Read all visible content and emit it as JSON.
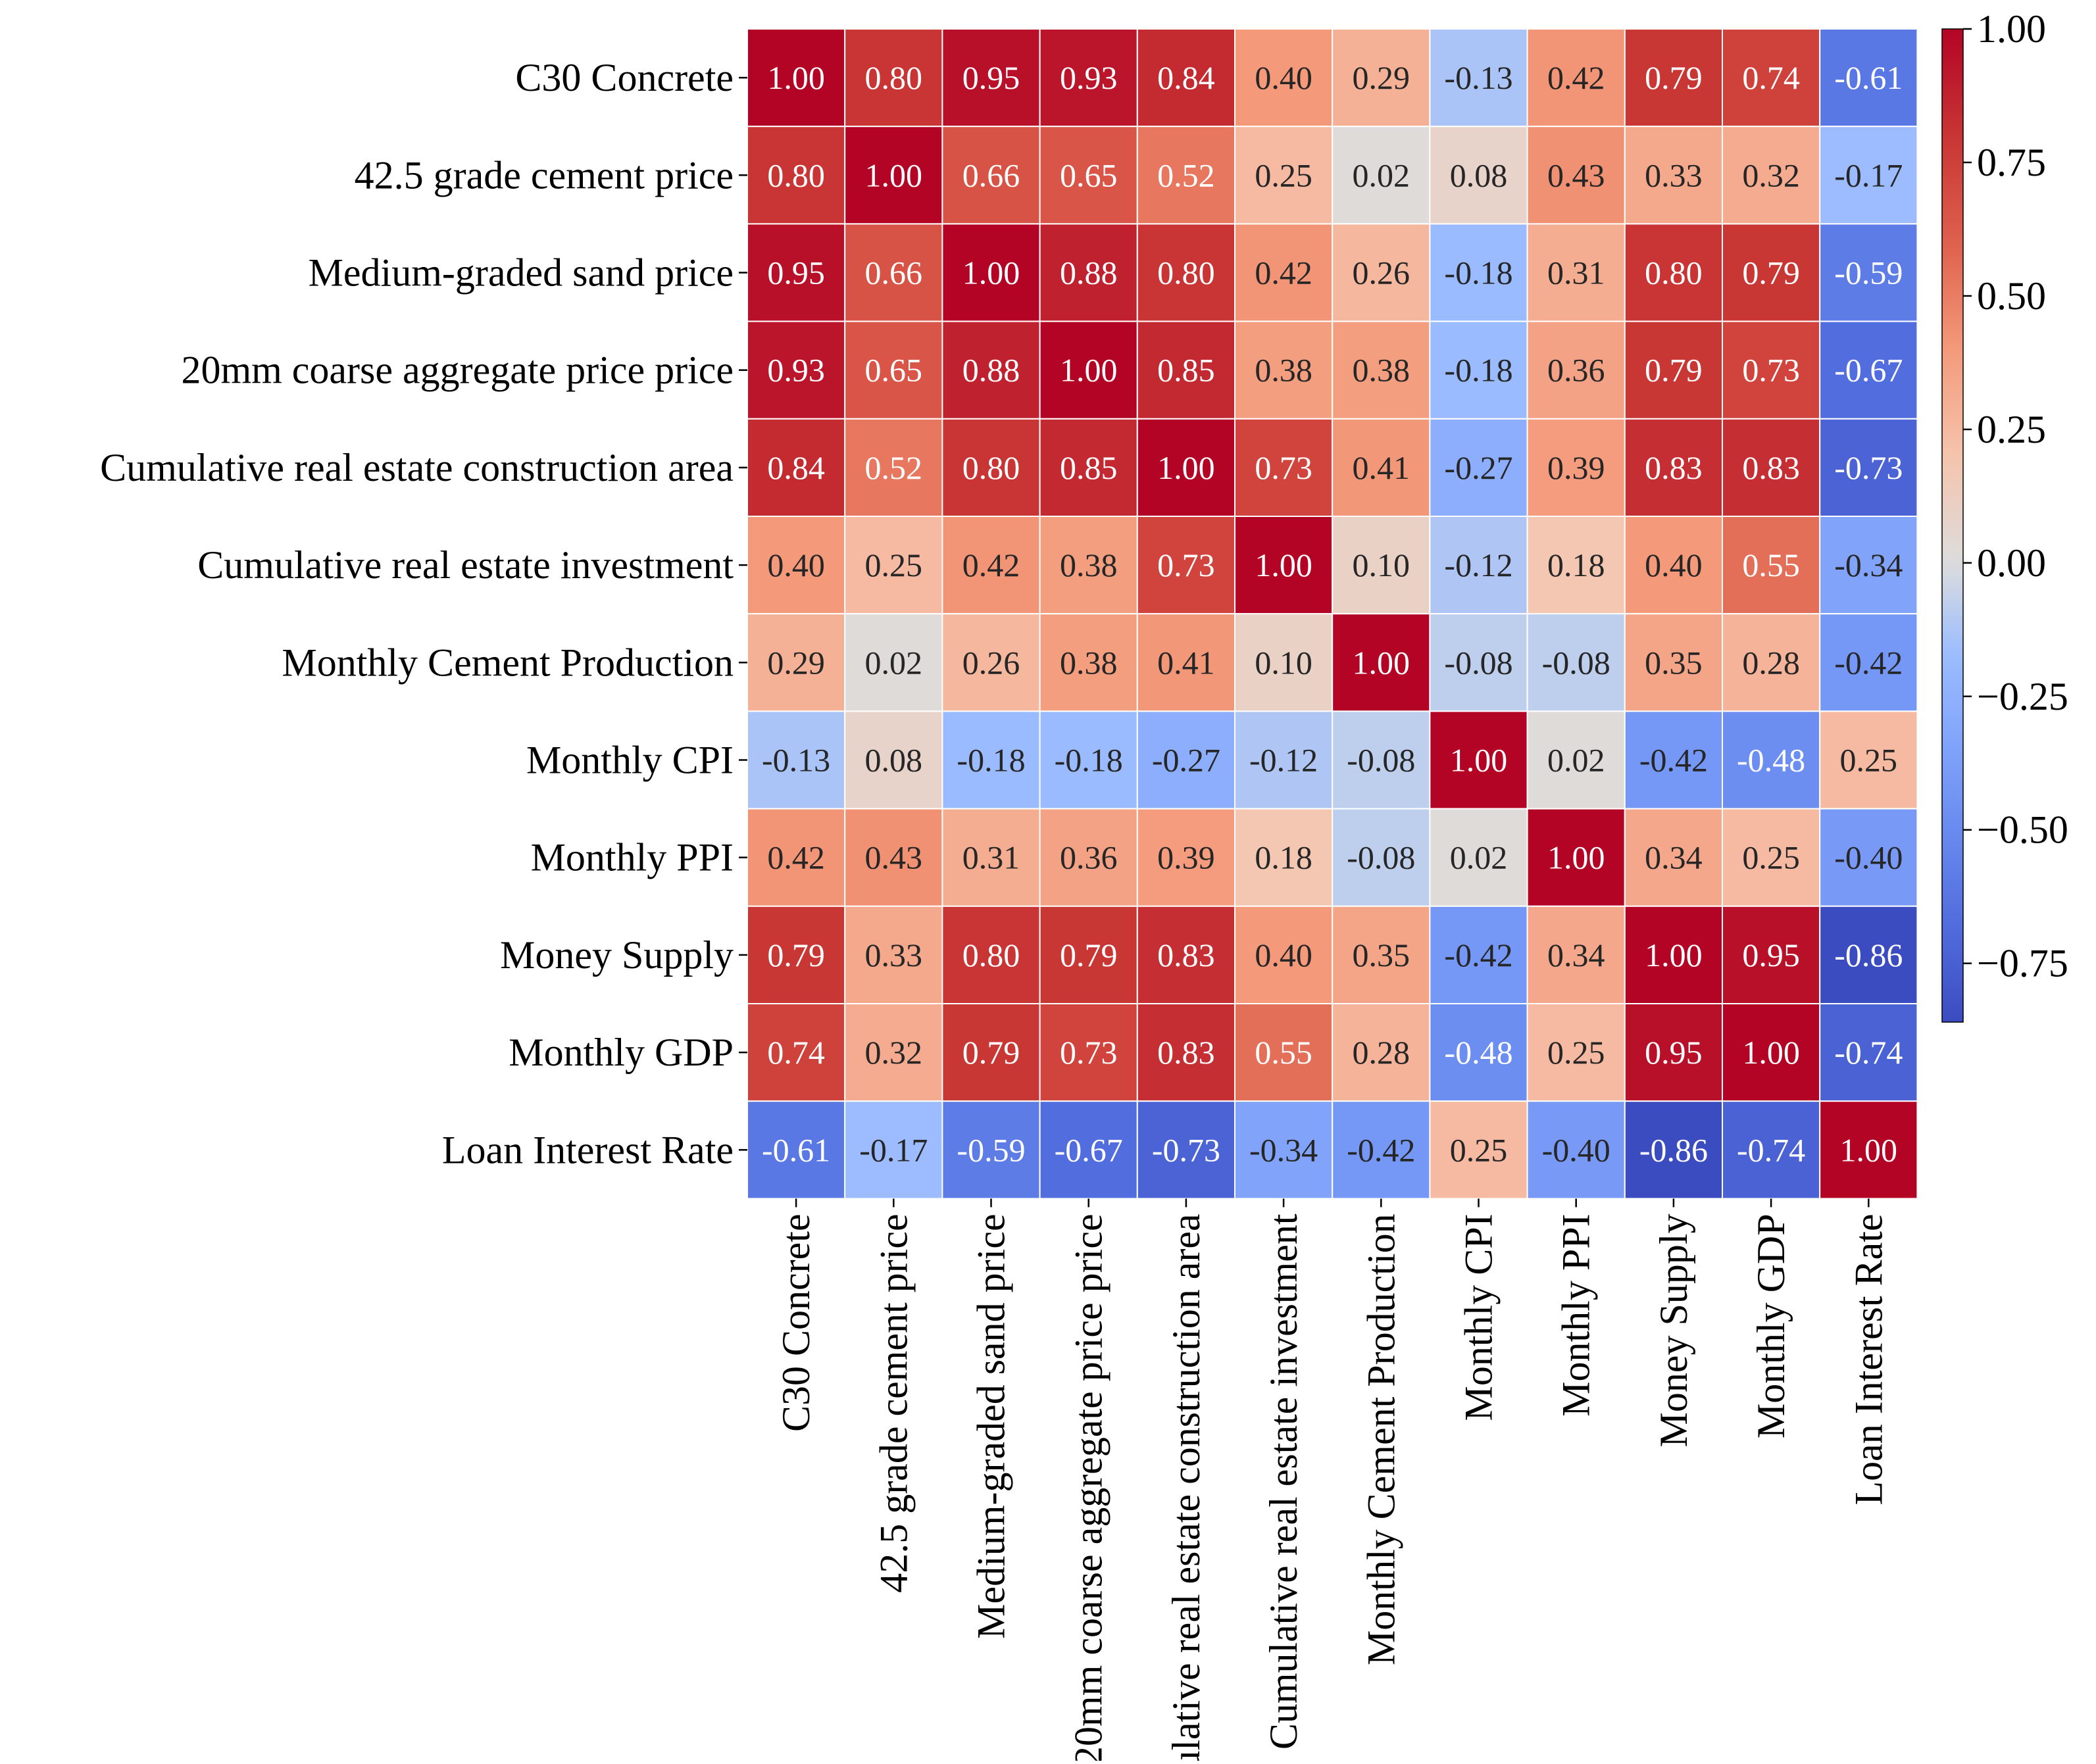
{
  "chart_data": {
    "type": "heatmap",
    "title": "",
    "xlabel": "",
    "ylabel": "",
    "labels": [
      "C30 Concrete",
      "42.5 grade cement price",
      "Medium-graded sand price",
      "20mm coarse aggregate price price",
      "Cumulative real estate construction area",
      "Cumulative real estate investment",
      "Monthly Cement Production",
      "Monthly CPI",
      "Monthly PPI",
      "Money Supply",
      "Monthly GDP",
      "Loan Interest Rate"
    ],
    "matrix": [
      [
        1.0,
        0.8,
        0.95,
        0.93,
        0.84,
        0.4,
        0.29,
        -0.13,
        0.42,
        0.79,
        0.74,
        -0.61
      ],
      [
        0.8,
        1.0,
        0.66,
        0.65,
        0.52,
        0.25,
        0.02,
        0.08,
        0.43,
        0.33,
        0.32,
        -0.17
      ],
      [
        0.95,
        0.66,
        1.0,
        0.88,
        0.8,
        0.42,
        0.26,
        -0.18,
        0.31,
        0.8,
        0.79,
        -0.59
      ],
      [
        0.93,
        0.65,
        0.88,
        1.0,
        0.85,
        0.38,
        0.38,
        -0.18,
        0.36,
        0.79,
        0.73,
        -0.67
      ],
      [
        0.84,
        0.52,
        0.8,
        0.85,
        1.0,
        0.73,
        0.41,
        -0.27,
        0.39,
        0.83,
        0.83,
        -0.73
      ],
      [
        0.4,
        0.25,
        0.42,
        0.38,
        0.73,
        1.0,
        0.1,
        -0.12,
        0.18,
        0.4,
        0.55,
        -0.34
      ],
      [
        0.29,
        0.02,
        0.26,
        0.38,
        0.41,
        0.1,
        1.0,
        -0.08,
        -0.08,
        0.35,
        0.28,
        -0.42
      ],
      [
        -0.13,
        0.08,
        -0.18,
        -0.18,
        -0.27,
        -0.12,
        -0.08,
        1.0,
        0.02,
        -0.42,
        -0.48,
        0.25
      ],
      [
        0.42,
        0.43,
        0.31,
        0.36,
        0.39,
        0.18,
        -0.08,
        0.02,
        1.0,
        0.34,
        0.25,
        -0.4
      ],
      [
        0.79,
        0.33,
        0.8,
        0.79,
        0.83,
        0.4,
        0.35,
        -0.42,
        0.34,
        1.0,
        0.95,
        -0.86
      ],
      [
        0.74,
        0.32,
        0.79,
        0.73,
        0.83,
        0.55,
        0.28,
        -0.48,
        0.25,
        0.95,
        1.0,
        -0.74
      ],
      [
        -0.61,
        -0.17,
        -0.59,
        -0.67,
        -0.73,
        -0.34,
        -0.42,
        0.25,
        -0.4,
        -0.86,
        -0.74,
        1.0
      ]
    ],
    "value_format": "2-decimal",
    "colormap": "coolwarm",
    "vmin": -0.86,
    "vmax": 1.0,
    "colorbar": {
      "ticks": [
        1.0,
        0.75,
        0.5,
        0.25,
        0.0,
        -0.25,
        -0.5,
        -0.75
      ],
      "tick_labels": [
        "1.00",
        "0.75",
        "0.50",
        "0.25",
        "0.00",
        "−0.25",
        "−0.50",
        "−0.75"
      ],
      "position": "right"
    },
    "colors": {
      "cool_end": "#3b4cc0",
      "neutral": "#dddddd",
      "warm_end": "#b40426",
      "cell_border": "#ffffff",
      "light_text": "#ffffff",
      "dark_text": "#262626",
      "axis": "#000000"
    }
  }
}
